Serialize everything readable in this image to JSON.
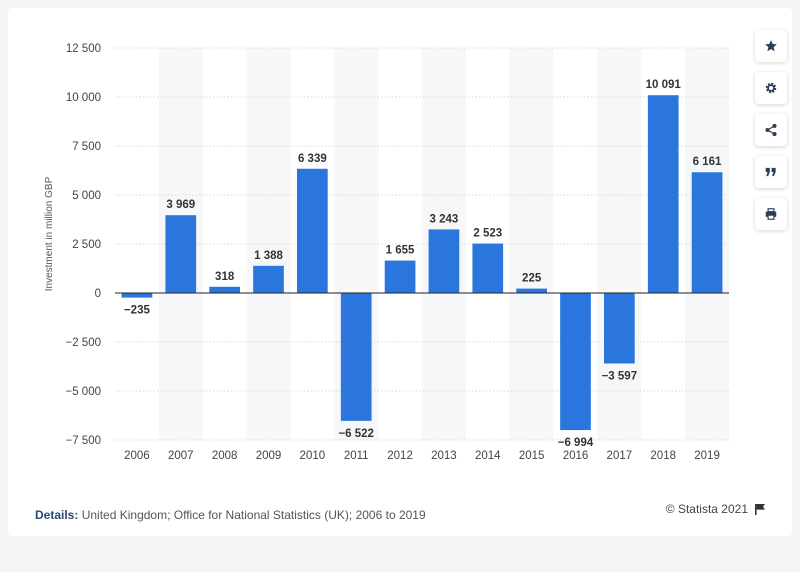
{
  "chart_data": {
    "type": "bar",
    "categories": [
      "2006",
      "2007",
      "2008",
      "2009",
      "2010",
      "2011",
      "2012",
      "2013",
      "2014",
      "2015",
      "2016",
      "2017",
      "2018",
      "2019"
    ],
    "values": [
      -235,
      3969,
      318,
      1388,
      6339,
      -6522,
      1655,
      3243,
      2523,
      225,
      -6994,
      -3597,
      10091,
      6161
    ],
    "value_labels": [
      "−235",
      "3 969",
      "318",
      "1 388",
      "6 339",
      "−6 522",
      "1 655",
      "3 243",
      "2 523",
      "225",
      "−6 994",
      "−3 597",
      "10 091",
      "6 161"
    ],
    "ylabel": "Investment in million GBP",
    "ylim": [
      -7500,
      12500
    ],
    "yticks": [
      -7500,
      -5000,
      -2500,
      0,
      2500,
      5000,
      7500,
      10000,
      12500
    ],
    "ytick_labels": [
      "−7 500",
      "−5 000",
      "−2 500",
      "0",
      "2 500",
      "5 000",
      "7 500",
      "10 000",
      "12 500"
    ],
    "grid": true,
    "bar_color": "#2a76dd"
  },
  "toolbar": {
    "icons": [
      "star-icon",
      "gear-icon",
      "share-icon",
      "quote-icon",
      "print-icon"
    ]
  },
  "footer": {
    "details_label": "Details:",
    "details_text": "United Kingdom; Office for National Statistics (UK); 2006 to 2019",
    "copyright": "© Statista 2021"
  }
}
